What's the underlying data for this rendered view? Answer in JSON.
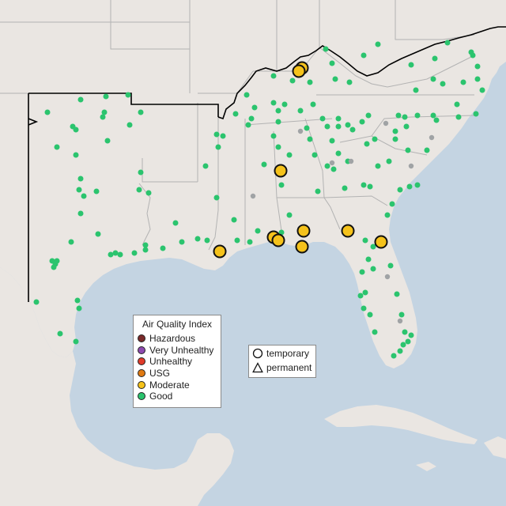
{
  "map": {
    "colors": {
      "land": "#eae6e2",
      "water": "#c4d4e2",
      "state_border": "#b3b3b3",
      "epa_region_border": "#000000",
      "good": "#2bc46e",
      "moderate": "#f5c21b",
      "unavailable": "#a0a3a5"
    }
  },
  "aqi_legend": {
    "title": "Air Quality Index",
    "items": [
      {
        "label": "Hazardous",
        "color": "#7a2a2a"
      },
      {
        "label": "Very Unhealthy",
        "color": "#8e4bb0"
      },
      {
        "label": "Unhealthy",
        "color": "#e03b2a"
      },
      {
        "label": "USG",
        "color": "#e07a12"
      },
      {
        "label": "Moderate",
        "color": "#f5c21b"
      },
      {
        "label": "Good",
        "color": "#2bc46e"
      }
    ]
  },
  "type_legend": {
    "items": [
      {
        "label": "temporary",
        "icon": "circle-icon"
      },
      {
        "label": "permanent",
        "icon": "triangle-icon"
      }
    ]
  }
}
